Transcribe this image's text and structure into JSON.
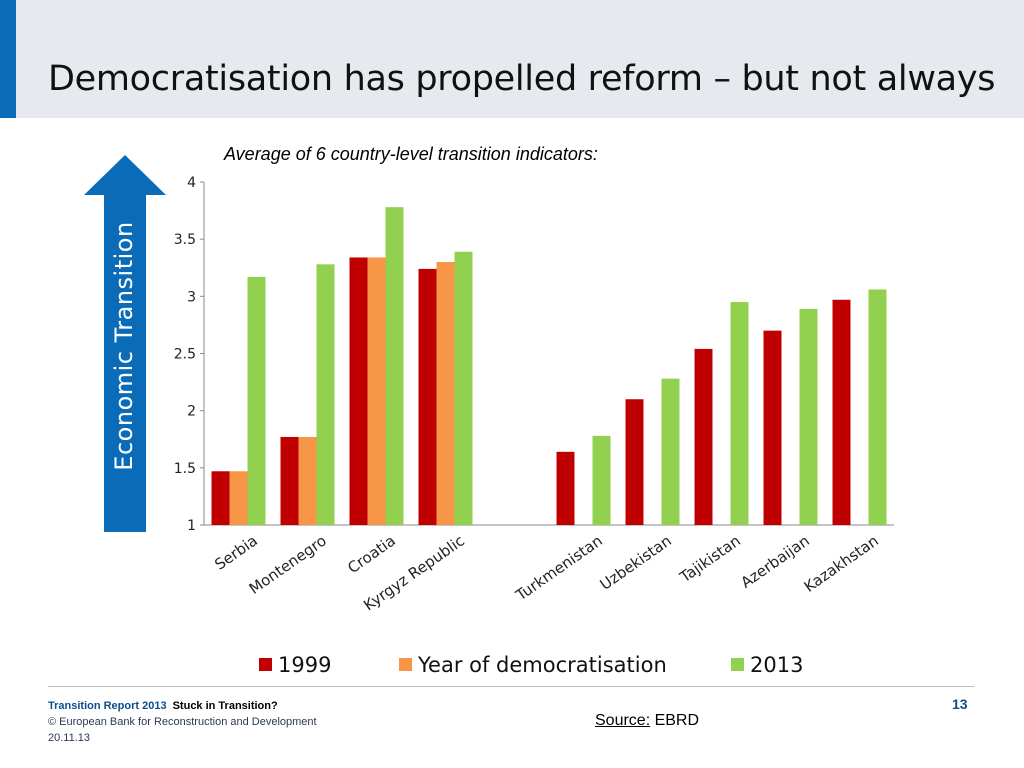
{
  "slide": {
    "title": "Democratisation has propelled reform – but not always",
    "subtitle": "Average of 6 country-level transition indicators:"
  },
  "side_arrow": {
    "label": "Economic Transition",
    "color": "#0a6cb8"
  },
  "chart_data": {
    "type": "bar",
    "title": "Average of 6 country-level transition indicators:",
    "xlabel": "",
    "ylabel": "Economic Transition",
    "ylim": [
      1,
      4
    ],
    "yticks": [
      "1",
      "1.5",
      "2",
      "2.5",
      "3",
      "3.5",
      "4"
    ],
    "grid": false,
    "legend_position": "bottom",
    "categories": [
      "Serbia",
      "Montenegro",
      "Croatia",
      "Kyrgyz Republic",
      "",
      "Turkmenistan",
      "Uzbekistan",
      "Tajikistan",
      "Azerbaijan",
      "Kazakhstan"
    ],
    "series": [
      {
        "name": "1999",
        "color": "#c00000",
        "values": [
          1.47,
          1.77,
          3.34,
          3.24,
          null,
          1.64,
          2.1,
          2.54,
          2.7,
          2.97
        ]
      },
      {
        "name": "Year of democratisation",
        "color": "#f79646",
        "values": [
          1.47,
          1.77,
          3.34,
          3.3,
          null,
          null,
          null,
          null,
          null,
          null
        ]
      },
      {
        "name": "2013",
        "color": "#92d050",
        "values": [
          3.17,
          3.28,
          3.78,
          3.39,
          null,
          1.78,
          2.28,
          2.95,
          2.89,
          3.06
        ]
      }
    ]
  },
  "footer": {
    "report": "Transition Report 2013",
    "section": "Stuck in Transition?",
    "copyright": "© European Bank for Reconstruction and Development",
    "date": "20.11.13",
    "page_number": "13",
    "source_label": "Source:",
    "source_value": " EBRD"
  }
}
